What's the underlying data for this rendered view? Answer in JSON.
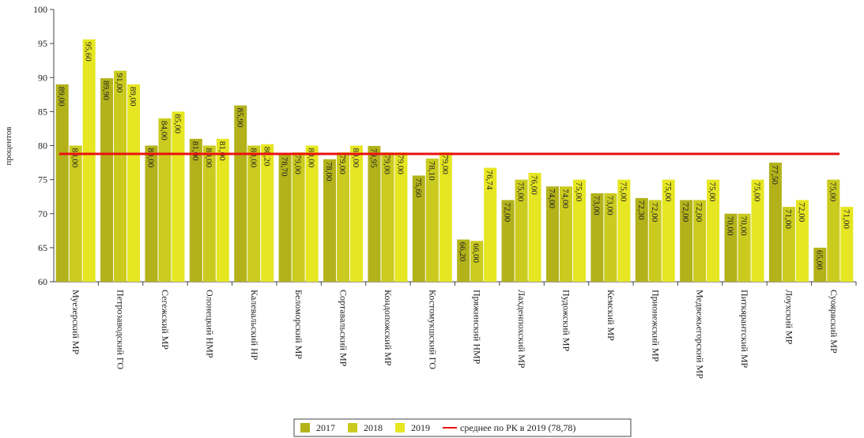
{
  "chart_data": {
    "type": "bar",
    "y_label": "процентов",
    "categories": [
      "Муезерский МР",
      "Петрозаводский ГО",
      "Сегежский МР",
      "Олонецкий НМР",
      "Калевальский НР",
      "Беломорский МР",
      "Сортавальский МР",
      "Кондопожский МР",
      "Костомукшский ГО",
      "Пряжинский НМР",
      "Лахденпохский МР",
      "Пудожский МР",
      "Кемский МР",
      "Прионежский МР",
      "Медвежьегорский МР",
      "Питкярантский МР",
      "Лоухский МР",
      "Суоярвский МР"
    ],
    "series": [
      {
        "name": "2017",
        "color": "#b3b21a",
        "values": [
          89.0,
          89.9,
          80.0,
          81.0,
          85.9,
          78.7,
          78.0,
          79.95,
          75.6,
          66.2,
          72.0,
          74.0,
          73.0,
          72.3,
          72.0,
          70.0,
          77.5,
          65.0
        ],
        "value_labels": [
          "89,00",
          "89,90",
          "80,00",
          "81,00",
          "85,90",
          "78,70",
          "78,00",
          "79,95",
          "75,60",
          "66,20",
          "72,00",
          "74,00",
          "73,00",
          "72,30",
          "72,00",
          "70,00",
          "77,50",
          "65,00"
        ]
      },
      {
        "name": "2018",
        "color": "#cbcb1f",
        "values": [
          80.0,
          91.0,
          84.0,
          80.0,
          80.0,
          79.0,
          79.0,
          79.0,
          78.1,
          66.0,
          75.0,
          74.0,
          73.0,
          72.0,
          72.0,
          70.0,
          71.0,
          75.0
        ],
        "value_labels": [
          "80,00",
          "91,00",
          "84,00",
          "80,00",
          "80,00",
          "79,00",
          "79,00",
          "79,00",
          "78,10",
          "66,00",
          "75,00",
          "74,00",
          "73,00",
          "72,00",
          "72,00",
          "70,00",
          "71,00",
          "75,00"
        ]
      },
      {
        "name": "2019",
        "color": "#e6e622",
        "values": [
          95.6,
          89.0,
          85.0,
          81.0,
          80.2,
          80.0,
          80.0,
          79.0,
          79.0,
          76.74,
          76.0,
          75.0,
          75.0,
          75.0,
          75.0,
          75.0,
          72.0,
          71.0
        ],
        "value_labels": [
          "95,60",
          "89,00",
          "85,00",
          "81,00",
          "80,20",
          "80,00",
          "80,00",
          "79,00",
          "79,00",
          "76,74",
          "76,00",
          "75,00",
          "75,00",
          "75,00",
          "75,00",
          "75,00",
          "72,00",
          "71,00"
        ]
      }
    ],
    "reference_line": {
      "name": "среднее по РК в 2019 (78,78)",
      "value": 78.78,
      "color": "#e81010"
    },
    "ylim": [
      60,
      100
    ],
    "yticks": [
      60,
      65,
      70,
      75,
      80,
      85,
      90,
      95,
      100
    ],
    "legend": "bottom"
  }
}
